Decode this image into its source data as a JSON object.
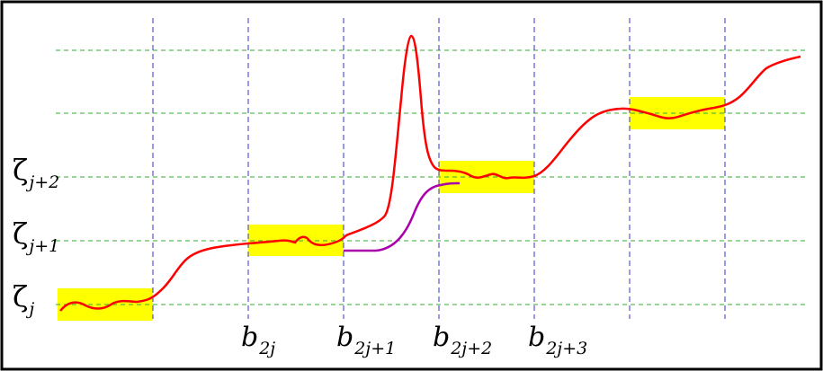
{
  "y_labels": [
    {
      "base": "ζ",
      "sub": "j"
    },
    {
      "base": "ζ",
      "sub": "j+1"
    },
    {
      "base": "ζ",
      "sub": "j+2"
    }
  ],
  "x_labels": [
    {
      "base": "b",
      "sub": "2j"
    },
    {
      "base": "b",
      "sub": "2j+1"
    },
    {
      "base": "b",
      "sub": "2j+2"
    },
    {
      "base": "b",
      "sub": "2j+3"
    }
  ],
  "colors": {
    "frame": "#000000",
    "horizontal_grid": "#33aa33",
    "vertical_grid": "#3333cc",
    "plateau_highlight": "#ffff00",
    "main_curve": "#ff0000",
    "alternate_curve": "#aa00aa"
  }
}
